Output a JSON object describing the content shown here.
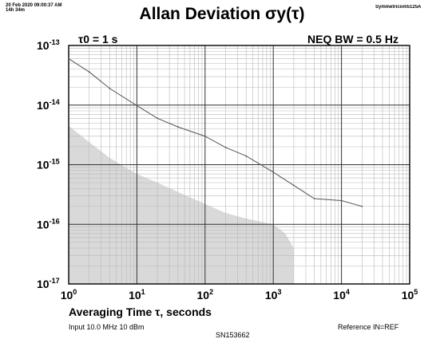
{
  "header": {
    "timestamp": "20 Feb 2020 09:00:37 AM",
    "duration": "14h 34m",
    "title": "Allan Deviation σy(τ)",
    "vendor": "Symmetricom5125A"
  },
  "annotations": {
    "tau0": "τ0 = 1 s",
    "neq_bw": "NEQ BW = 0.5 Hz"
  },
  "footer": {
    "input": "Input 10.0 MHz 10 dBm",
    "serial": "SN153662",
    "reference": "Reference IN=REF"
  },
  "chart_data": {
    "type": "line",
    "title": "Allan Deviation σy(τ)",
    "xlabel": "Averaging Time τ, seconds",
    "ylabel": "",
    "x_scale": "log",
    "y_scale": "log",
    "xlim": [
      1,
      100000
    ],
    "ylim": [
      1e-17,
      1e-13
    ],
    "x_ticks": [
      {
        "value": 1,
        "base": "10",
        "exp": "0"
      },
      {
        "value": 10,
        "base": "10",
        "exp": "1"
      },
      {
        "value": 100,
        "base": "10",
        "exp": "2"
      },
      {
        "value": 1000,
        "base": "10",
        "exp": "3"
      },
      {
        "value": 10000,
        "base": "10",
        "exp": "4"
      },
      {
        "value": 100000,
        "base": "10",
        "exp": "5"
      }
    ],
    "y_ticks": [
      {
        "value": 1e-13,
        "base": "10",
        "exp": "-13"
      },
      {
        "value": 1e-14,
        "base": "10",
        "exp": "-14"
      },
      {
        "value": 1e-15,
        "base": "10",
        "exp": "-15"
      },
      {
        "value": 1e-16,
        "base": "10",
        "exp": "-16"
      },
      {
        "value": 1e-17,
        "base": "10",
        "exp": "-17"
      }
    ],
    "grid": true,
    "series": [
      {
        "x": [
          1,
          2,
          4,
          10,
          20,
          40,
          100,
          200,
          400,
          1000,
          2000,
          4000,
          10000,
          20000
        ],
        "y": [
          6e-14,
          3.6e-14,
          1.9e-14,
          9.8e-15,
          6e-15,
          4.3e-15,
          3e-15,
          1.95e-15,
          1.4e-15,
          7.5e-16,
          4.5e-16,
          2.7e-16,
          2.5e-16,
          2e-16
        ],
        "color": "#555555"
      }
    ],
    "noise_floor_region": {
      "x": [
        1,
        2,
        4,
        10,
        20,
        40,
        100,
        200,
        400,
        1000,
        1500,
        2000
      ],
      "y": [
        4.5e-15,
        2.4e-15,
        1.3e-15,
        7e-16,
        5e-16,
        3.5e-16,
        2.2e-16,
        1.55e-16,
        1.25e-16,
        1e-16,
        7e-17,
        4e-17
      ],
      "color": "#d9d9d9"
    }
  }
}
